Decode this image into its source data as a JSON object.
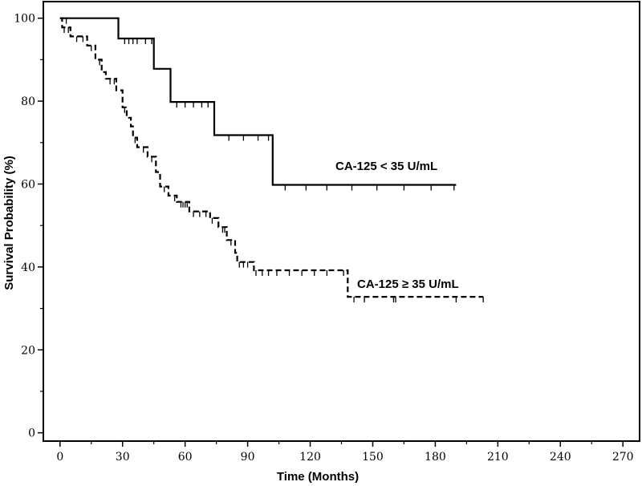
{
  "chart_data": {
    "type": "line",
    "title": "",
    "xlabel": "Time (Months)",
    "ylabel": "Survival Probability (%)",
    "xlim": [
      -8,
      278
    ],
    "ylim": [
      -2,
      104
    ],
    "xticks": [
      0,
      30,
      60,
      90,
      120,
      150,
      180,
      210,
      240,
      270
    ],
    "yticks": [
      0,
      20,
      40,
      60,
      80,
      100
    ],
    "grid": false,
    "series": [
      {
        "name": "CA-125 < 35 U/mL",
        "style": "solid",
        "color": "#000000",
        "steps": [
          [
            0,
            100
          ],
          [
            28,
            100
          ],
          [
            28,
            95.1
          ],
          [
            45,
            95.1
          ],
          [
            45,
            87.8
          ],
          [
            53,
            87.8
          ],
          [
            53,
            79.8
          ],
          [
            74,
            79.8
          ],
          [
            74,
            71.8
          ],
          [
            102,
            71.8
          ],
          [
            102,
            59.8
          ],
          [
            190,
            59.8
          ]
        ],
        "censor_x": [
          3,
          31,
          33,
          35,
          37,
          41,
          44,
          56,
          60,
          64,
          68,
          71,
          81,
          88,
          95,
          100,
          108,
          118,
          128,
          140,
          152,
          165,
          178,
          189
        ]
      },
      {
        "name": "CA-125 ≥ 35 U/mL",
        "style": "dashed",
        "color": "#000000",
        "steps": [
          [
            0,
            100
          ],
          [
            1,
            100
          ],
          [
            1,
            97.8
          ],
          [
            5,
            97.8
          ],
          [
            5,
            95.6
          ],
          [
            13,
            95.6
          ],
          [
            13,
            93.4
          ],
          [
            17,
            93.4
          ],
          [
            17,
            90
          ],
          [
            20,
            90
          ],
          [
            20,
            87
          ],
          [
            22,
            87
          ],
          [
            22,
            85.4
          ],
          [
            27,
            85.4
          ],
          [
            27,
            82.6
          ],
          [
            30,
            82.6
          ],
          [
            30,
            78.5
          ],
          [
            32,
            78.5
          ],
          [
            32,
            76
          ],
          [
            34,
            76
          ],
          [
            34,
            73.9
          ],
          [
            35,
            73.9
          ],
          [
            35,
            71.2
          ],
          [
            37,
            71.2
          ],
          [
            37,
            68.9
          ],
          [
            42,
            68.9
          ],
          [
            42,
            66.6
          ],
          [
            46,
            66.6
          ],
          [
            46,
            62.9
          ],
          [
            48,
            62.9
          ],
          [
            48,
            59.4
          ],
          [
            52,
            59.4
          ],
          [
            52,
            57.2
          ],
          [
            56,
            57.2
          ],
          [
            56,
            55.7
          ],
          [
            62,
            55.7
          ],
          [
            62,
            53.4
          ],
          [
            72,
            53.4
          ],
          [
            72,
            51.8
          ],
          [
            76,
            51.8
          ],
          [
            76,
            49.6
          ],
          [
            80,
            49.6
          ],
          [
            80,
            46.5
          ],
          [
            84,
            46.5
          ],
          [
            84,
            43.4
          ],
          [
            85,
            43.4
          ],
          [
            85,
            41.2
          ],
          [
            93,
            41.2
          ],
          [
            93,
            39.2
          ],
          [
            138,
            39.2
          ],
          [
            138,
            32.8
          ],
          [
            203,
            32.8
          ]
        ],
        "censor_x": [
          2,
          4,
          8,
          11,
          15,
          19,
          24,
          26,
          31,
          36,
          40,
          44,
          50,
          55,
          58,
          59,
          60,
          61,
          64,
          67,
          70,
          73,
          78,
          79,
          82,
          86,
          88,
          90,
          94,
          97,
          100,
          104,
          110,
          116,
          122,
          128,
          136,
          141,
          146,
          160,
          161,
          190,
          203
        ]
      }
    ]
  }
}
